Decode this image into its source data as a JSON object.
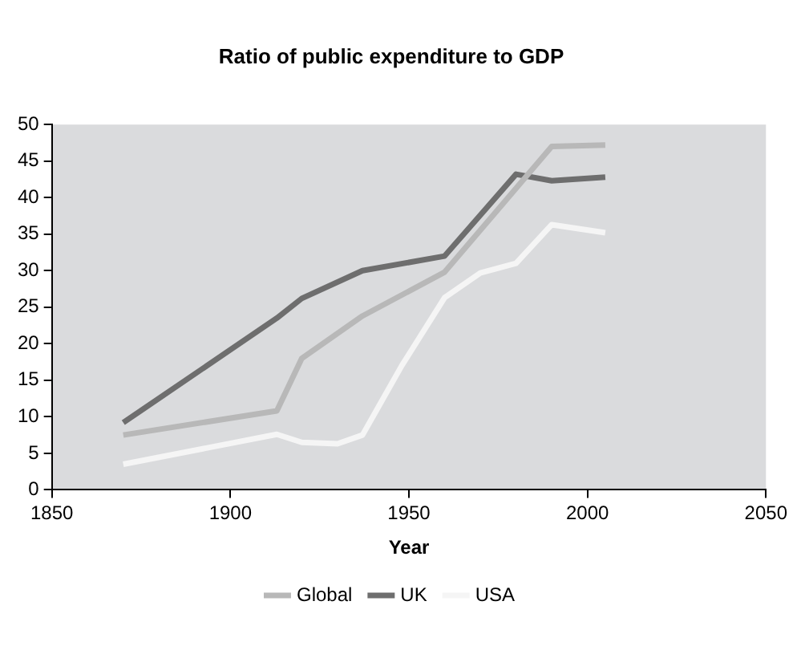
{
  "chart_data": {
    "type": "line",
    "title": "Ratio of public expenditure to GDP",
    "xlabel": "Year",
    "xlim": [
      1850,
      2050
    ],
    "xticks": [
      1850,
      1900,
      1950,
      2000,
      2050
    ],
    "ylim": [
      0,
      50
    ],
    "yticks": [
      0,
      5,
      10,
      15,
      20,
      25,
      30,
      35,
      40,
      45,
      50
    ],
    "grid": false,
    "legend": "bottom",
    "marker": "none",
    "line_style": "solid",
    "series": [
      {
        "name": "Global",
        "color": "#b8b8b8",
        "x": [
          1870,
          1913,
          1920,
          1937,
          1960,
          1990,
          2005
        ],
        "values": [
          7.5,
          10.8,
          18,
          23.8,
          29.8,
          47,
          47.2
        ]
      },
      {
        "name": "UK",
        "color": "#6e6e6e",
        "x": [
          1870,
          1913,
          1920,
          1937,
          1960,
          1980,
          1990,
          2005
        ],
        "values": [
          9.2,
          23.5,
          26.2,
          30,
          32,
          43.2,
          42.3,
          42.8
        ]
      },
      {
        "name": "USA",
        "color": "#f5f5f5",
        "x": [
          1870,
          1913,
          1920,
          1930,
          1937,
          1948,
          1960,
          1970,
          1980,
          1990,
          2005
        ],
        "values": [
          3.5,
          7.6,
          6.5,
          6.3,
          7.5,
          17,
          26.3,
          29.7,
          31,
          36.3,
          35.2
        ]
      }
    ]
  }
}
